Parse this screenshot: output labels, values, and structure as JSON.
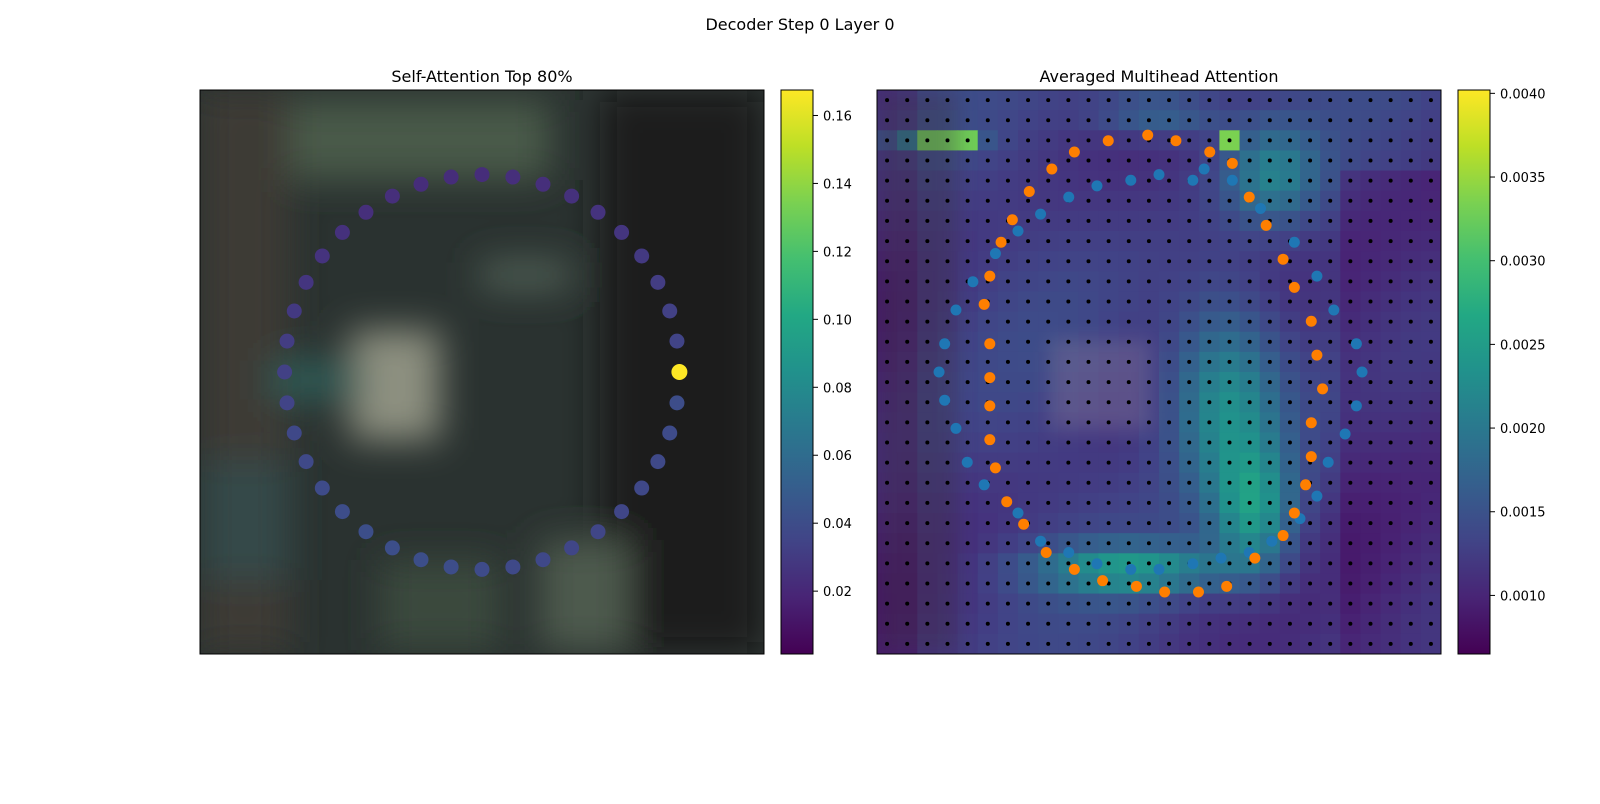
{
  "figure": {
    "title": "Decoder Step 0 Layer 0"
  },
  "chart_data": [
    {
      "type": "scatter",
      "title": "Self-Attention Top 80%",
      "background": "blurred-image",
      "xlim": [
        0,
        1
      ],
      "ylim": [
        0,
        1
      ],
      "colormap": "viridis",
      "colorbar": {
        "min": 0.0015,
        "max": 0.1675,
        "ticks": [
          "0.02",
          "0.04",
          "0.06",
          "0.08",
          "0.10",
          "0.12",
          "0.14",
          "0.16"
        ],
        "tick_values": [
          0.02,
          0.04,
          0.06,
          0.08,
          0.1,
          0.12,
          0.14,
          0.16
        ]
      },
      "points": {
        "shape": "circle-contour",
        "center": [
          0.5,
          0.5
        ],
        "radius": 0.35,
        "count": 40,
        "values": [
          0.168,
          0.035,
          0.033,
          0.031,
          0.029,
          0.027,
          0.026,
          0.025,
          0.024,
          0.024,
          0.023,
          0.023,
          0.023,
          0.024,
          0.024,
          0.025,
          0.026,
          0.027,
          0.029,
          0.031,
          0.033,
          0.035,
          0.037,
          0.038,
          0.039,
          0.04,
          0.041,
          0.041,
          0.041,
          0.04,
          0.039,
          0.038,
          0.037,
          0.036,
          0.036,
          0.036,
          0.037,
          0.038,
          0.039,
          0.04
        ]
      }
    },
    {
      "type": "heatmap",
      "title": "Averaged Multihead Attention",
      "grid": [
        28,
        28
      ],
      "colormap": "viridis",
      "colorbar": {
        "min": 0.00065,
        "max": 0.00402,
        "ticks": [
          "0.0010",
          "0.0015",
          "0.0020",
          "0.0025",
          "0.0030",
          "0.0035",
          "0.0040"
        ],
        "tick_values": [
          0.001,
          0.0015,
          0.002,
          0.0025,
          0.003,
          0.0035,
          0.004
        ]
      },
      "reference_points": {
        "color": "#000000"
      },
      "series": [
        {
          "color": "#1f77b4",
          "points": [
            [
              0.58,
              0.14
            ],
            [
              0.63,
              0.16
            ],
            [
              0.68,
              0.21
            ],
            [
              0.74,
              0.27
            ],
            [
              0.78,
              0.33
            ],
            [
              0.81,
              0.39
            ],
            [
              0.85,
              0.45
            ],
            [
              0.86,
              0.5
            ],
            [
              0.85,
              0.56
            ],
            [
              0.83,
              0.61
            ],
            [
              0.8,
              0.66
            ],
            [
              0.78,
              0.72
            ],
            [
              0.75,
              0.76
            ],
            [
              0.7,
              0.8
            ],
            [
              0.66,
              0.82
            ],
            [
              0.61,
              0.83
            ],
            [
              0.56,
              0.84
            ],
            [
              0.5,
              0.85
            ],
            [
              0.45,
              0.85
            ],
            [
              0.39,
              0.84
            ],
            [
              0.34,
              0.82
            ],
            [
              0.29,
              0.8
            ],
            [
              0.25,
              0.75
            ],
            [
              0.19,
              0.7
            ],
            [
              0.16,
              0.66
            ],
            [
              0.14,
              0.6
            ],
            [
              0.12,
              0.55
            ],
            [
              0.11,
              0.5
            ],
            [
              0.12,
              0.45
            ],
            [
              0.14,
              0.39
            ],
            [
              0.17,
              0.34
            ],
            [
              0.21,
              0.29
            ],
            [
              0.25,
              0.25
            ],
            [
              0.29,
              0.22
            ],
            [
              0.34,
              0.19
            ],
            [
              0.39,
              0.17
            ],
            [
              0.45,
              0.16
            ],
            [
              0.5,
              0.15
            ],
            [
              0.56,
              0.16
            ]
          ]
        },
        {
          "color": "#ff7f00",
          "points": [
            [
              0.59,
              0.11
            ],
            [
              0.63,
              0.13
            ],
            [
              0.66,
              0.19
            ],
            [
              0.69,
              0.24
            ],
            [
              0.72,
              0.3
            ],
            [
              0.74,
              0.35
            ],
            [
              0.77,
              0.41
            ],
            [
              0.78,
              0.47
            ],
            [
              0.79,
              0.53
            ],
            [
              0.77,
              0.59
            ],
            [
              0.77,
              0.65
            ],
            [
              0.76,
              0.7
            ],
            [
              0.74,
              0.75
            ],
            [
              0.72,
              0.79
            ],
            [
              0.67,
              0.83
            ],
            [
              0.62,
              0.88
            ],
            [
              0.57,
              0.89
            ],
            [
              0.51,
              0.89
            ],
            [
              0.46,
              0.88
            ],
            [
              0.4,
              0.87
            ],
            [
              0.35,
              0.85
            ],
            [
              0.3,
              0.82
            ],
            [
              0.26,
              0.77
            ],
            [
              0.23,
              0.73
            ],
            [
              0.21,
              0.67
            ],
            [
              0.2,
              0.62
            ],
            [
              0.2,
              0.56
            ],
            [
              0.2,
              0.51
            ],
            [
              0.2,
              0.45
            ],
            [
              0.19,
              0.38
            ],
            [
              0.2,
              0.33
            ],
            [
              0.22,
              0.27
            ],
            [
              0.24,
              0.23
            ],
            [
              0.27,
              0.18
            ],
            [
              0.31,
              0.14
            ],
            [
              0.35,
              0.11
            ],
            [
              0.41,
              0.09
            ],
            [
              0.48,
              0.08
            ],
            [
              0.53,
              0.09
            ]
          ]
        }
      ]
    }
  ]
}
